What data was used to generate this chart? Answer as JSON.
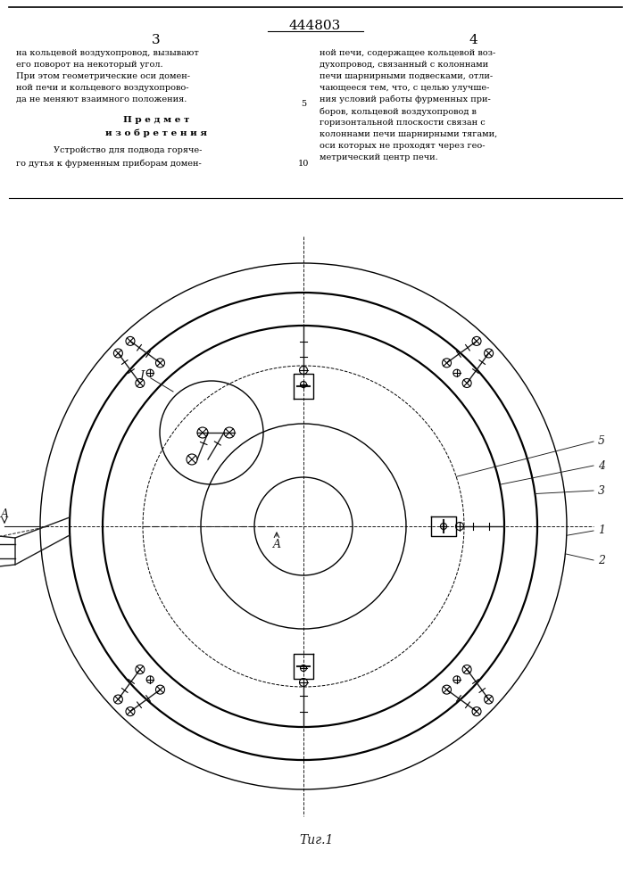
{
  "title_number": "444803",
  "page_left": "3",
  "page_right": "4",
  "fig_label": "Τиг.1",
  "background_color": "#ffffff",
  "line_color": "#1a1a1a"
}
